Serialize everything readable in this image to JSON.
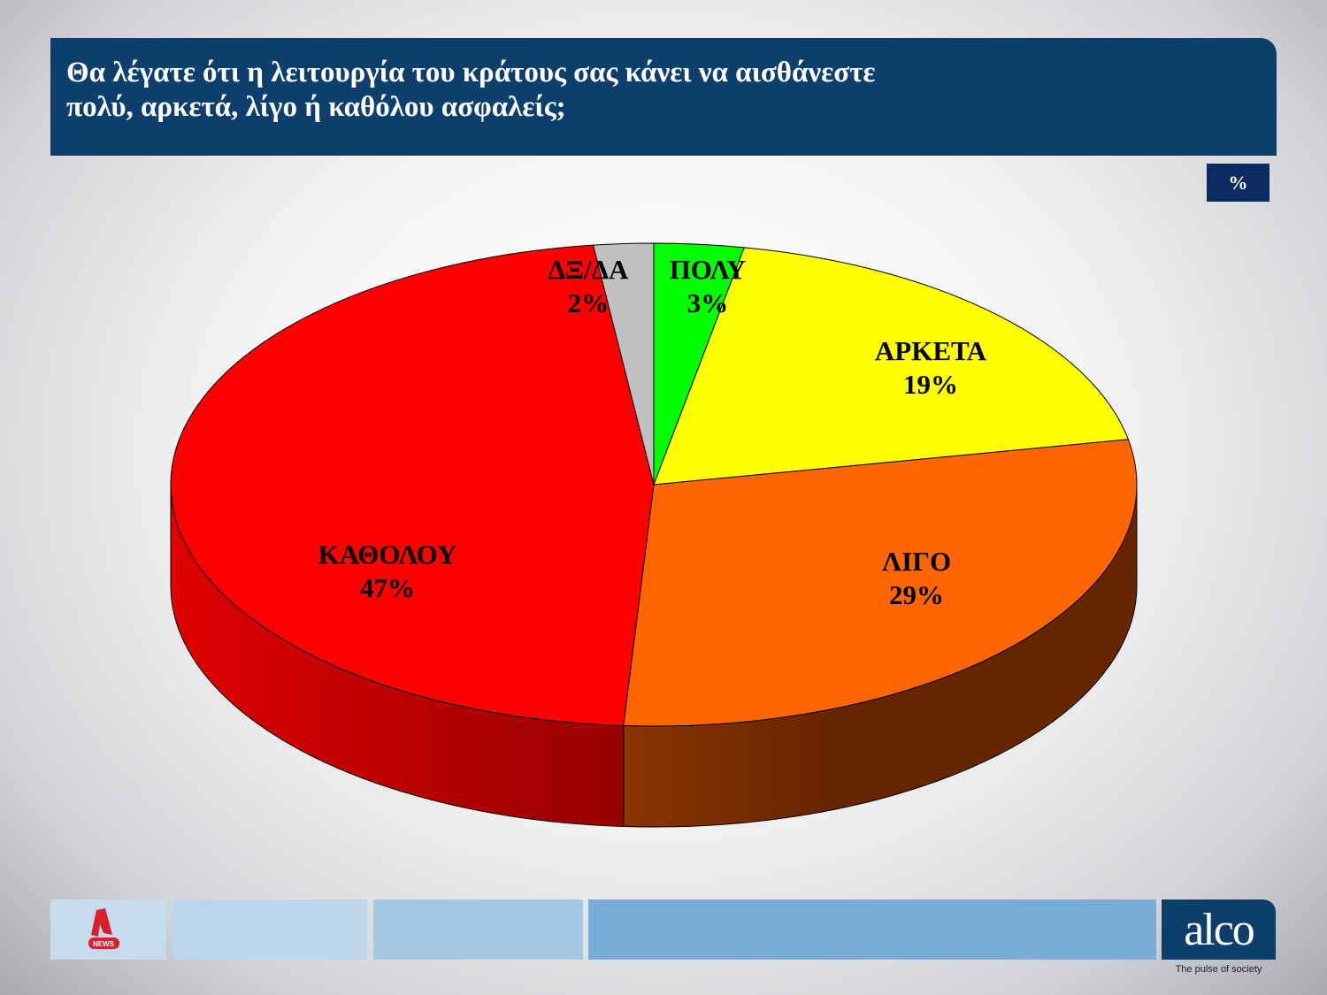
{
  "title": "Θα λέγατε ότι η λειτουργία του κράτους σας  κάνει να αισθάνεστε\nπολύ, αρκετά, λίγο ή καθόλου ασφαλείς;",
  "unit_badge": "%",
  "chart_data": {
    "type": "pie",
    "style": "3d",
    "slices": [
      {
        "label": "ΠΟΛΥ",
        "value": 3,
        "display": "3%",
        "color": "#00ff00"
      },
      {
        "label": "ΑΡΚΕΤΑ",
        "value": 19,
        "display": "19%",
        "color": "#ffff00"
      },
      {
        "label": "ΛΙΓΟ",
        "value": 29,
        "display": "29%",
        "color": "#ff6600",
        "side_color": "#6a2800"
      },
      {
        "label": "ΚΑΘΟΛΟΥ",
        "value": 47,
        "display": "47%",
        "color": "#ff0000",
        "side_color": "#c00000"
      },
      {
        "label": "ΔΞ/ΔΑ",
        "value": 2,
        "display": "2%",
        "color": "#c0c0c0"
      }
    ]
  },
  "footer": {
    "logo_left": "NEWS",
    "brand": "alco",
    "tagline": "The pulse of society"
  }
}
